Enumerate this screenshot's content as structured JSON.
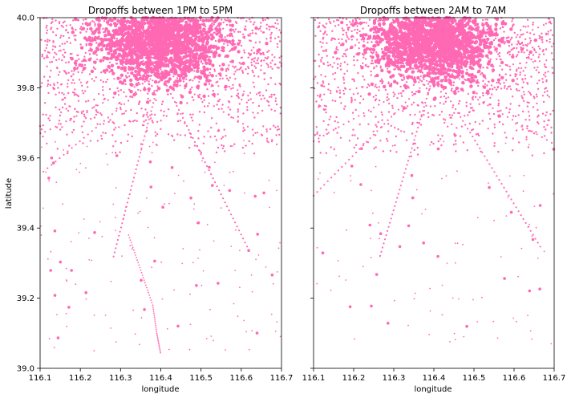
{
  "chart_data": [
    {
      "type": "scatter",
      "title": "Dropoffs between 1PM to 5PM",
      "xlabel": "longitude",
      "ylabel": "latitude",
      "xlim": [
        116.1,
        116.7
      ],
      "ylim": [
        39.0,
        40.0
      ],
      "xticks": [
        "116.1",
        "116.2",
        "116.3",
        "116.4",
        "116.5",
        "116.6",
        "116.7"
      ],
      "yticks": [
        "39.0",
        "39.2",
        "39.4",
        "39.6",
        "39.8",
        "40.0"
      ],
      "show_yticklabels": true,
      "grid": false,
      "color": "#ff69b4",
      "density": {
        "center": [
          116.4,
          39.92
        ],
        "dense_lat_min": 39.6,
        "sparse_tail": [
          [
            116.32,
            39.38
          ],
          [
            116.35,
            39.28
          ],
          [
            116.38,
            39.18
          ],
          [
            116.39,
            39.1
          ],
          [
            116.4,
            39.04
          ]
        ]
      }
    },
    {
      "type": "scatter",
      "title": "Dropoffs between 2AM to 7AM",
      "xlabel": "longitude",
      "ylabel": "",
      "xlim": [
        116.1,
        116.7
      ],
      "ylim": [
        39.0,
        40.0
      ],
      "xticks": [
        "116.1",
        "116.2",
        "116.3",
        "116.4",
        "116.5",
        "116.6",
        "116.7"
      ],
      "yticks": [
        "39.0",
        "39.2",
        "39.4",
        "39.6",
        "39.8",
        "40.0"
      ],
      "show_yticklabels": false,
      "grid": false,
      "color": "#ff69b4",
      "density": {
        "center": [
          116.4,
          39.92
        ],
        "dense_lat_min": 39.6,
        "sparse_tail": []
      }
    }
  ]
}
